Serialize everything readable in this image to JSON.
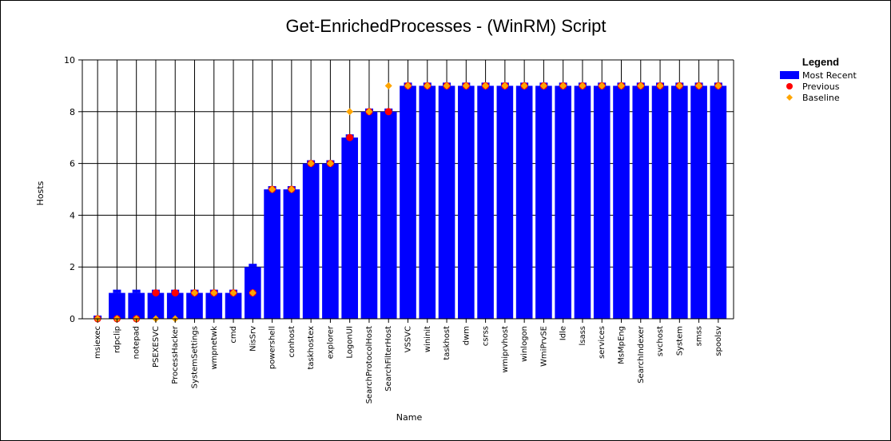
{
  "chart_data": {
    "type": "bar",
    "title": "Get-EnrichedProcesses - (WinRM) Script",
    "xlabel": "Name",
    "ylabel": "Hosts",
    "ylim": [
      0,
      10
    ],
    "yticks": [
      0,
      2,
      4,
      6,
      8,
      10
    ],
    "grid": true,
    "legend_placement": "top-right",
    "legend_title": "Legend",
    "categories": [
      "msiexec",
      "rdpclip",
      "notepad",
      "PSEXESVC",
      "ProcessHacker",
      "SystemSettings",
      "wmpnetwk",
      "cmd",
      "NisSrv",
      "powershell",
      "conhost",
      "taskhostex",
      "explorer",
      "LogonUI",
      "SearchProtocolHost",
      "SearchFilterHost",
      "VSSVC",
      "wininit",
      "taskhost",
      "dwm",
      "csrss",
      "wmiprvhost",
      "winlogon",
      "WmiPrvSE",
      "Idle",
      "lsass",
      "services",
      "MsMpEng",
      "SearchIndexer",
      "svchost",
      "System",
      "smss",
      "spoolsv"
    ],
    "series": [
      {
        "name": "Most Recent",
        "kind": "bar",
        "color": "#0000ff",
        "values": [
          0,
          1,
          1,
          1,
          1,
          1,
          1,
          1,
          2,
          5,
          5,
          6,
          6,
          7,
          8,
          8,
          9,
          9,
          9,
          9,
          9,
          9,
          9,
          9,
          9,
          9,
          9,
          9,
          9,
          9,
          9,
          9,
          9
        ]
      },
      {
        "name": "Previous",
        "kind": "point",
        "marker": "circle",
        "color": "#ff0000",
        "values": [
          0,
          0,
          0,
          1,
          1,
          1,
          1,
          1,
          1,
          5,
          5,
          6,
          6,
          7,
          8,
          8,
          9,
          9,
          9,
          9,
          9,
          9,
          9,
          9,
          9,
          9,
          9,
          9,
          9,
          9,
          9,
          9,
          9
        ]
      },
      {
        "name": "Baseline",
        "kind": "point",
        "marker": "diamond",
        "color": "#ffa500",
        "values": [
          0,
          0,
          0,
          0,
          0,
          1,
          1,
          1,
          1,
          5,
          5,
          6,
          6,
          8,
          8,
          9,
          9,
          9,
          9,
          9,
          9,
          9,
          9,
          9,
          9,
          9,
          9,
          9,
          9,
          9,
          9,
          9,
          9
        ]
      }
    ]
  }
}
